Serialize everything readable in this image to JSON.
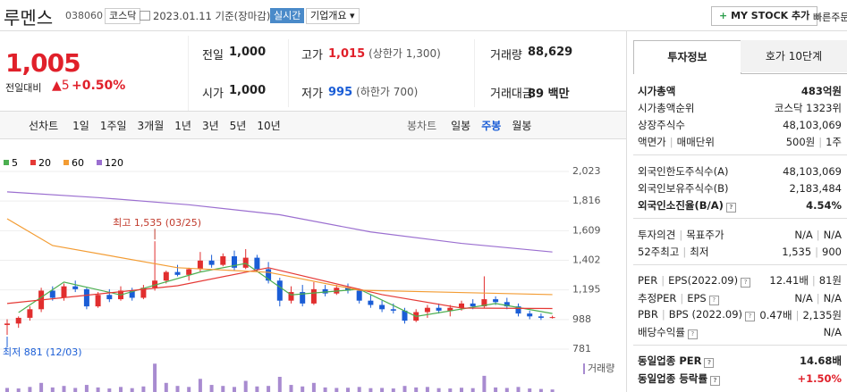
{
  "header": {
    "name": "루멘스",
    "code": "038060",
    "market": "코스닥",
    "date": "2023.01.11 기준(장마감)",
    "realtime": "실시간",
    "company": "기업개요",
    "mystock": "MY STOCK 추가",
    "quick": "빠른주문"
  },
  "quote": {
    "price": "1,005",
    "change_label": "전일대비",
    "change": "5",
    "change_pct": "+0.50%",
    "rows": [
      [
        {
          "label": "전일",
          "value": "1,000"
        },
        {
          "label": "고가",
          "value": "1,015",
          "note": "(상한가 1,300)",
          "color": "#e0202a"
        },
        {
          "label": "거래량",
          "value": "88,629"
        }
      ],
      [
        {
          "label": "시가",
          "value": "1,000"
        },
        {
          "label": "저가",
          "value": "995",
          "note": "(하한가 700)",
          "color": "#1a5dd6"
        },
        {
          "label": "거래대금",
          "value": "89 백만"
        }
      ]
    ]
  },
  "periods": {
    "line_label": "선차트",
    "line": [
      "1일",
      "1주일",
      "3개월",
      "1년",
      "3년",
      "5년",
      "10년"
    ],
    "candle_label": "봉차트",
    "candle": [
      "일봉",
      "주봉",
      "월봉"
    ],
    "selected": "주봉"
  },
  "info": {
    "tabs": [
      "투자정보",
      "호가 10단계"
    ],
    "groups": [
      [
        {
          "label": [
            "시가총액"
          ],
          "values": [
            "483억원"
          ],
          "bold": true
        },
        {
          "label": [
            "시가총액순위"
          ],
          "values": [
            "코스닥 1323위"
          ]
        },
        {
          "label": [
            "상장주식수"
          ],
          "values": [
            "48,103,069"
          ]
        },
        {
          "label": [
            "액면가",
            "매매단위"
          ],
          "values": [
            "500원",
            "1주"
          ]
        }
      ],
      [
        {
          "label": [
            "외국인한도주식수(A)"
          ],
          "values": [
            "48,103,069"
          ]
        },
        {
          "label": [
            "외국인보유주식수(B)"
          ],
          "values": [
            "2,183,484"
          ]
        },
        {
          "label": [
            "외국인소진율(B/A)"
          ],
          "values": [
            "4.54%"
          ],
          "bold": true,
          "help": true
        }
      ],
      [
        {
          "label": [
            "투자의견",
            "목표주가"
          ],
          "values": [
            "N/A",
            "N/A"
          ]
        },
        {
          "label": [
            "52주최고",
            "최저"
          ],
          "values": [
            "1,535",
            "900"
          ]
        }
      ],
      [
        {
          "label": [
            "PER",
            "EPS(2022.09)"
          ],
          "values": [
            "12.41배",
            "81원"
          ],
          "help": true
        },
        {
          "label": [
            "추정PER",
            "EPS"
          ],
          "values": [
            "N/A",
            "N/A"
          ],
          "help": true
        },
        {
          "label": [
            "PBR",
            "BPS (2022.09)"
          ],
          "values": [
            "0.47배",
            "2,135원"
          ],
          "help": true
        },
        {
          "label": [
            "배당수익률"
          ],
          "values": [
            "N/A"
          ],
          "help": true
        }
      ],
      [
        {
          "label": [
            "동일업종 PER"
          ],
          "values": [
            "14.68배"
          ],
          "bold": true,
          "help": true
        },
        {
          "label": [
            "동일업종 등락률"
          ],
          "values": [
            "+1.50%"
          ],
          "bold": true,
          "help": true,
          "color": "#e0202a"
        }
      ]
    ]
  },
  "chart_data": {
    "type": "candlestick",
    "up_color": "#e12e2e",
    "down_color": "#1a5dd6",
    "ylim": [
      725,
      2160
    ],
    "yticks": [
      {
        "value": 2023,
        "label": "2,023"
      },
      {
        "value": 1816,
        "label": "1,816"
      },
      {
        "value": 1609,
        "label": "1,609"
      },
      {
        "value": 1402,
        "label": "1,402"
      },
      {
        "value": 1195,
        "label": "1,195"
      },
      988,
      781
    ],
    "grid": true,
    "candles": [
      {
        "open": 950,
        "high": 990,
        "low": 881,
        "close": 960
      },
      {
        "open": 960,
        "high": 1010,
        "low": 930,
        "close": 1000
      },
      {
        "open": 1000,
        "high": 1080,
        "low": 980,
        "close": 1060
      },
      {
        "open": 1060,
        "high": 1210,
        "low": 1040,
        "close": 1190
      },
      {
        "open": 1190,
        "high": 1220,
        "low": 1120,
        "close": 1140
      },
      {
        "open": 1140,
        "high": 1240,
        "low": 1120,
        "close": 1220
      },
      {
        "open": 1220,
        "high": 1260,
        "low": 1180,
        "close": 1200
      },
      {
        "open": 1200,
        "high": 1210,
        "low": 1060,
        "close": 1080
      },
      {
        "open": 1080,
        "high": 1180,
        "low": 1070,
        "close": 1160
      },
      {
        "open": 1160,
        "high": 1200,
        "low": 1110,
        "close": 1130
      },
      {
        "open": 1130,
        "high": 1220,
        "low": 1120,
        "close": 1190
      },
      {
        "open": 1190,
        "high": 1210,
        "low": 1120,
        "close": 1140
      },
      {
        "open": 1140,
        "high": 1230,
        "low": 1130,
        "close": 1210
      },
      {
        "open": 1210,
        "high": 1535,
        "low": 1190,
        "close": 1260
      },
      {
        "open": 1260,
        "high": 1330,
        "low": 1240,
        "close": 1320
      },
      {
        "open": 1320,
        "high": 1370,
        "low": 1290,
        "close": 1300
      },
      {
        "open": 1300,
        "high": 1350,
        "low": 1260,
        "close": 1340
      },
      {
        "open": 1340,
        "high": 1460,
        "low": 1320,
        "close": 1400
      },
      {
        "open": 1400,
        "high": 1440,
        "low": 1350,
        "close": 1370
      },
      {
        "open": 1370,
        "high": 1450,
        "low": 1360,
        "close": 1430
      },
      {
        "open": 1430,
        "high": 1470,
        "low": 1330,
        "close": 1350
      },
      {
        "open": 1350,
        "high": 1480,
        "low": 1340,
        "close": 1420
      },
      {
        "open": 1420,
        "high": 1440,
        "low": 1320,
        "close": 1340
      },
      {
        "open": 1340,
        "high": 1390,
        "low": 1240,
        "close": 1260
      },
      {
        "open": 1260,
        "high": 1280,
        "low": 1080,
        "close": 1120
      },
      {
        "open": 1120,
        "high": 1220,
        "low": 1100,
        "close": 1180
      },
      {
        "open": 1180,
        "high": 1230,
        "low": 1080,
        "close": 1100
      },
      {
        "open": 1100,
        "high": 1250,
        "low": 1090,
        "close": 1200
      },
      {
        "open": 1200,
        "high": 1230,
        "low": 1150,
        "close": 1170
      },
      {
        "open": 1170,
        "high": 1230,
        "low": 1160,
        "close": 1210
      },
      {
        "open": 1210,
        "high": 1240,
        "low": 1170,
        "close": 1190
      },
      {
        "open": 1190,
        "high": 1200,
        "low": 1100,
        "close": 1120
      },
      {
        "open": 1120,
        "high": 1160,
        "low": 1070,
        "close": 1090
      },
      {
        "open": 1090,
        "high": 1120,
        "low": 1040,
        "close": 1060
      },
      {
        "open": 1060,
        "high": 1100,
        "low": 1030,
        "close": 1050
      },
      {
        "open": 1050,
        "high": 1070,
        "low": 960,
        "close": 980
      },
      {
        "open": 980,
        "high": 1060,
        "low": 970,
        "close": 1040
      },
      {
        "open": 1040,
        "high": 1090,
        "low": 1000,
        "close": 1070
      },
      {
        "open": 1070,
        "high": 1100,
        "low": 1030,
        "close": 1050
      },
      {
        "open": 1050,
        "high": 1090,
        "low": 1010,
        "close": 1070
      },
      {
        "open": 1070,
        "high": 1120,
        "low": 1050,
        "close": 1100
      },
      {
        "open": 1100,
        "high": 1130,
        "low": 1060,
        "close": 1080
      },
      {
        "open": 1080,
        "high": 1290,
        "low": 1070,
        "close": 1130
      },
      {
        "open": 1130,
        "high": 1150,
        "low": 1090,
        "close": 1110
      },
      {
        "open": 1110,
        "high": 1140,
        "low": 1060,
        "close": 1080
      },
      {
        "open": 1080,
        "high": 1100,
        "low": 1010,
        "close": 1030
      },
      {
        "open": 1030,
        "high": 1050,
        "low": 990,
        "close": 1010
      },
      {
        "open": 1010,
        "high": 1030,
        "low": 985,
        "close": 1000
      },
      {
        "open": 1000,
        "high": 1015,
        "low": 995,
        "close": 1005
      }
    ],
    "volume_label": "거래량",
    "volume_color": "#a88bd0",
    "vlim": [
      0,
      3000000
    ],
    "volumes": [
      400000,
      350000,
      500000,
      900000,
      450000,
      600000,
      400000,
      700000,
      450000,
      350000,
      500000,
      380000,
      550000,
      2800000,
      900000,
      600000,
      500000,
      1300000,
      700000,
      600000,
      500000,
      1100000,
      550000,
      600000,
      1500000,
      700000,
      550000,
      900000,
      450000,
      400000,
      420000,
      500000,
      380000,
      400000,
      350000,
      600000,
      450000,
      500000,
      380000,
      350000,
      420000,
      380000,
      1600000,
      450000,
      400000,
      500000,
      350000,
      300000,
      250000
    ],
    "series": [
      {
        "name": "5",
        "color": "#4caf50",
        "x": [
          1,
          5,
          10,
          17,
          21,
          25,
          31,
          36,
          43,
          48
        ],
        "values": [
          1037,
          1250,
          1160,
          1320,
          1380,
          1160,
          1200,
          1010,
          1100,
          1030
        ]
      },
      {
        "name": "20",
        "color": "#e53935",
        "x": [
          0,
          15,
          23,
          33,
          40,
          48
        ],
        "values": [
          1100,
          1224,
          1350,
          1162,
          1068,
          1065
        ]
      },
      {
        "name": "60",
        "color": "#f39c33",
        "x": [
          0,
          4,
          15,
          23,
          31,
          48
        ],
        "values": [
          1692,
          1505,
          1350,
          1318,
          1193,
          1162
        ]
      },
      {
        "name": "120",
        "color": "#9b6fd0",
        "x": [
          0,
          8,
          16,
          24,
          32,
          40,
          48
        ],
        "values": [
          1880,
          1840,
          1790,
          1720,
          1600,
          1520,
          1460
        ]
      }
    ],
    "annotations": [
      {
        "kind": "max",
        "text": "최고 1,535 (03/25)"
      },
      {
        "kind": "min",
        "text": "최저 881 (12/03)"
      }
    ]
  }
}
